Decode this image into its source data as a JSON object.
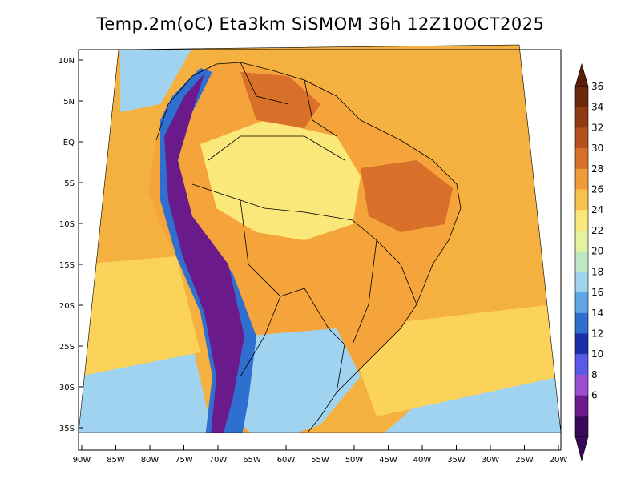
{
  "title": "Temp.2m(oC) Eta3km SiSMOM 36h 12Z10OCT2025",
  "lat_labels": [
    "10N",
    "5N",
    "EQ",
    "5S",
    "10S",
    "15S",
    "20S",
    "25S",
    "30S",
    "35S"
  ],
  "lon_labels": [
    "90W",
    "85W",
    "80W",
    "75W",
    "70W",
    "65W",
    "60W",
    "55W",
    "50W",
    "45W",
    "40W",
    "35W",
    "30W",
    "25W",
    "20W"
  ],
  "colorbar": {
    "labels": [
      "36",
      "34",
      "32",
      "30",
      "28",
      "26",
      "24",
      "22",
      "20",
      "18",
      "16",
      "14",
      "12",
      "10",
      "8",
      "6"
    ],
    "colors": [
      "#6b2a0c",
      "#8e3b14",
      "#b5511e",
      "#d9702a",
      "#f09a3a",
      "#f8c14a",
      "#fbe87a",
      "#e4f3a0",
      "#bfe8c2",
      "#9fd3ef",
      "#5fa6e6",
      "#2f6fd0",
      "#1a2fa8",
      "#5a5ae6",
      "#9a4fd0",
      "#6a1a8a",
      "#3a0a5a"
    ],
    "top_arrow_color": "#5a1e08",
    "bottom_arrow_color": "#3a0a5a"
  },
  "field_colors": {
    "ocean_warm": "#f5b13f",
    "ocean_mid": "#fbd25a",
    "ocean_cool": "#9fd3ef",
    "land_main": "#f4a43a",
    "land_light": "#fbe87a",
    "northeast_hot": "#d9702a",
    "andes_cold": "#6a1a8a",
    "andes_mid": "#2f6fd0",
    "south_cool": "#9fd3ef"
  }
}
